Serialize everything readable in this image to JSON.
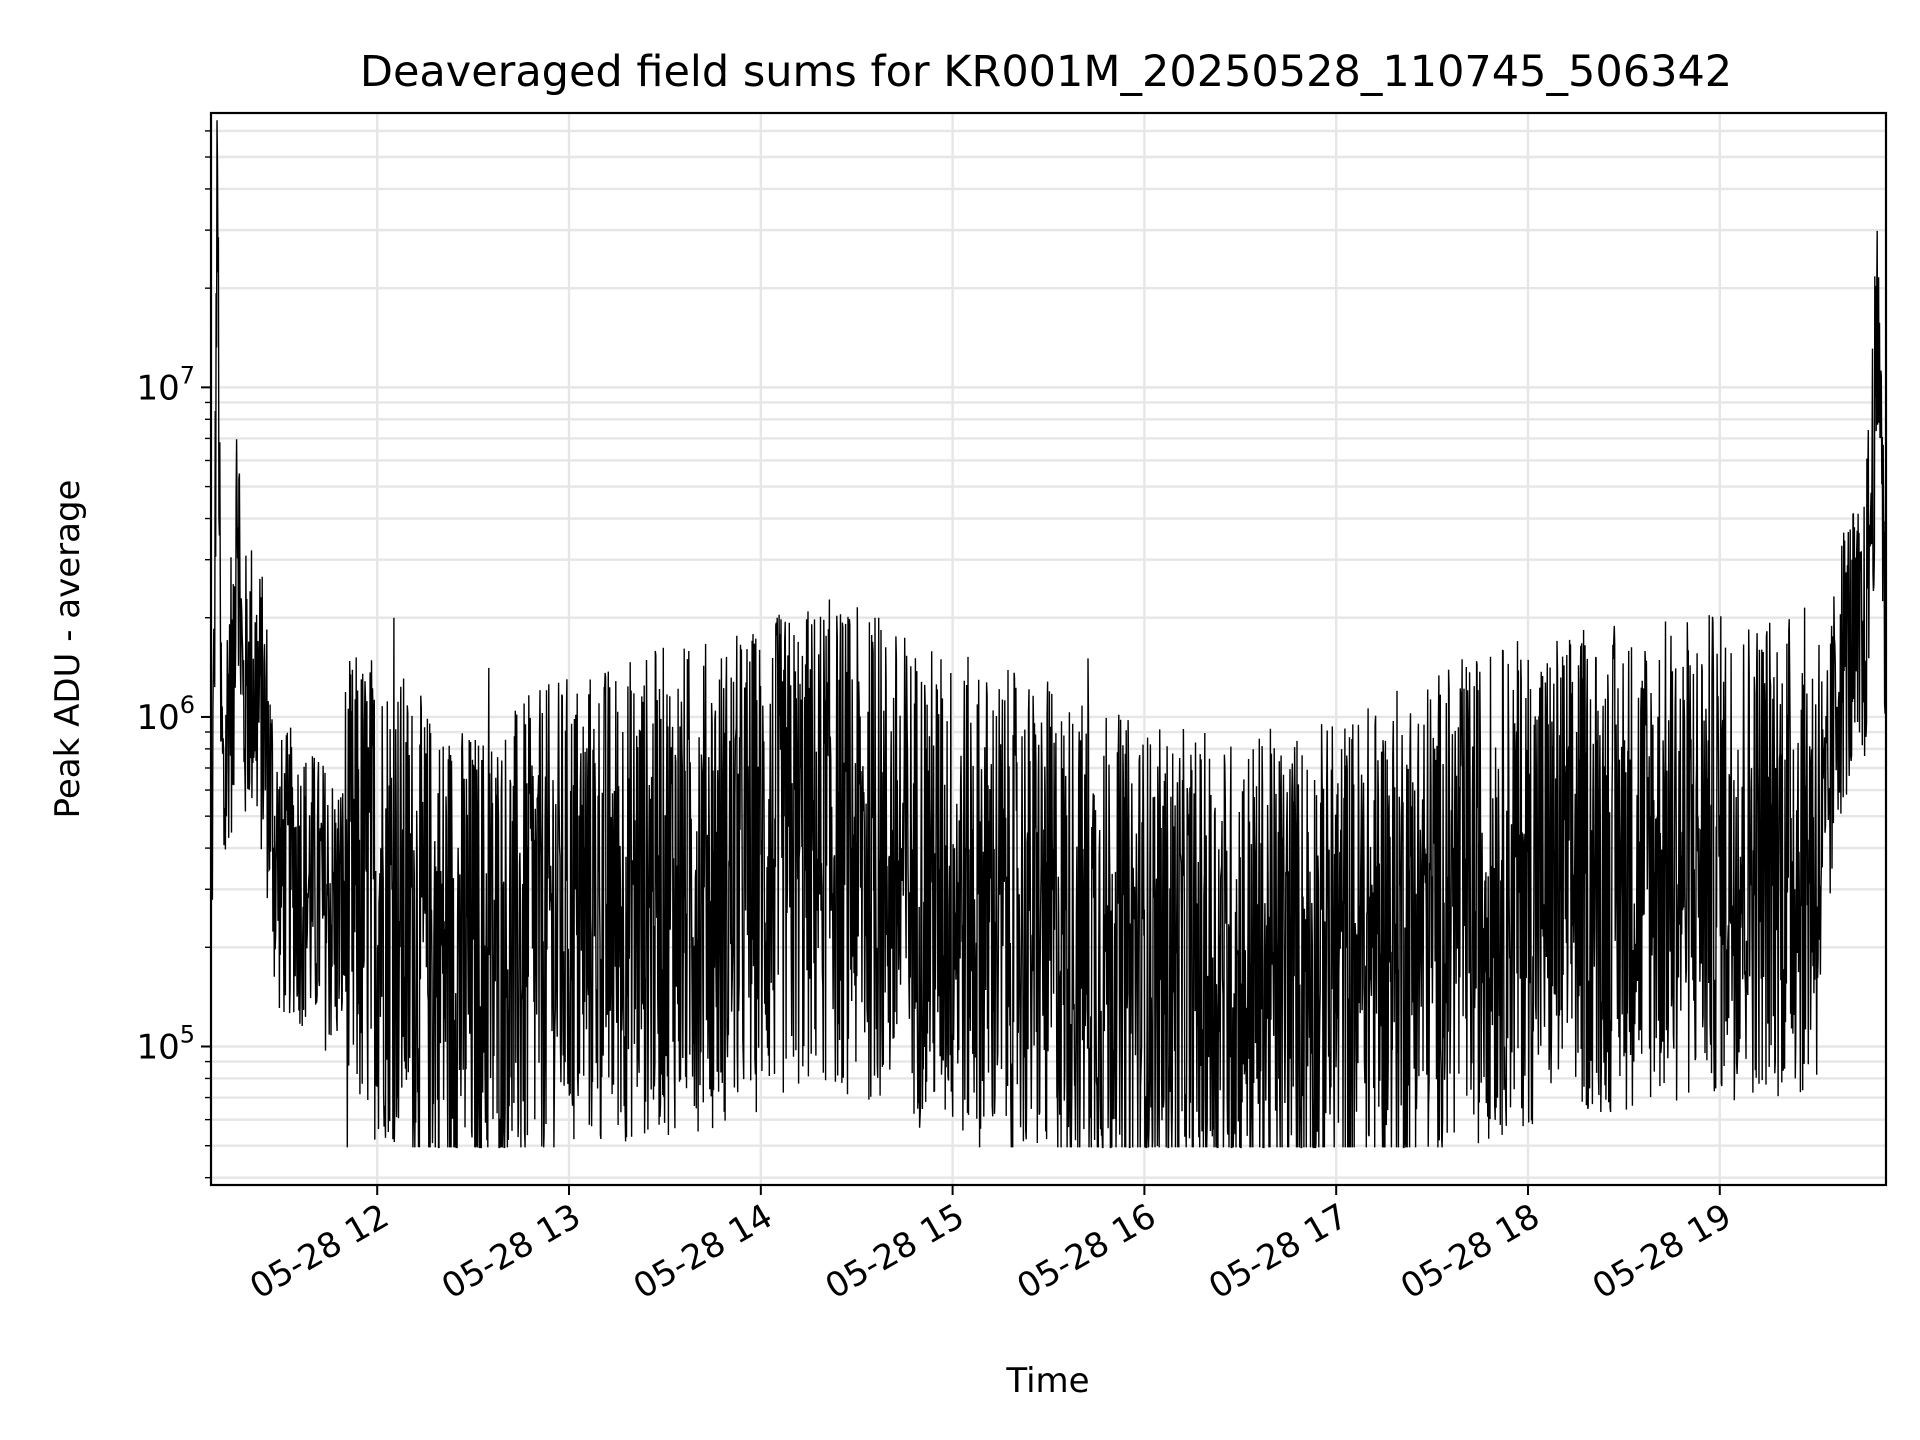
{
  "chart_data": {
    "type": "line",
    "title": "Deaveraged field sums for KR001M_20250528_110745_506342",
    "xlabel": "Time",
    "ylabel": "Peak ADU - average",
    "xscale": "time",
    "yscale": "log",
    "xlim": [
      "2025-05-28T11:08",
      "2025-05-28T19:52"
    ],
    "ylim": [
      38000,
      68000000
    ],
    "grid": true,
    "line_color": "#000000",
    "background": "#ffffff",
    "grid_color": "#e6e6e6",
    "x_ticks": [
      {
        "value": "2025-05-28T12:00",
        "label": "05-28 12"
      },
      {
        "value": "2025-05-28T13:00",
        "label": "05-28 13"
      },
      {
        "value": "2025-05-28T14:00",
        "label": "05-28 14"
      },
      {
        "value": "2025-05-28T15:00",
        "label": "05-28 15"
      },
      {
        "value": "2025-05-28T16:00",
        "label": "05-28 16"
      },
      {
        "value": "2025-05-28T17:00",
        "label": "05-28 17"
      },
      {
        "value": "2025-05-28T18:00",
        "label": "05-28 18"
      },
      {
        "value": "2025-05-28T19:00",
        "label": "05-28 19"
      }
    ],
    "y_ticks": [
      {
        "value": 100000,
        "base": "10",
        "exp": "5"
      },
      {
        "value": 1000000,
        "base": "10",
        "exp": "6"
      },
      {
        "value": 10000000,
        "base": "10",
        "exp": "7"
      }
    ],
    "series": [
      {
        "x": [
          "2025-05-28T11:08",
          "2025-05-28T11:09",
          "2025-05-28T11:10",
          "2025-05-28T11:11",
          "2025-05-28T11:12",
          "2025-05-28T11:14",
          "2025-05-28T11:15",
          "2025-05-28T11:16",
          "2025-05-28T11:18",
          "2025-05-28T11:20",
          "2025-05-28T11:23",
          "2025-05-28T11:25",
          "2025-05-28T11:28",
          "2025-05-28T11:30",
          "2025-05-28T11:34",
          "2025-05-28T11:38",
          "2025-05-28T11:42",
          "2025-05-28T11:48",
          "2025-05-28T11:55",
          "2025-05-28T12:05",
          "2025-05-28T12:15",
          "2025-05-28T12:30",
          "2025-05-28T12:45",
          "2025-05-28T13:00",
          "2025-05-28T13:30",
          "2025-05-28T13:50",
          "2025-05-28T14:00",
          "2025-05-28T14:20",
          "2025-05-28T14:40",
          "2025-05-28T14:55",
          "2025-05-28T15:10",
          "2025-05-28T15:30",
          "2025-05-28T15:45",
          "2025-05-28T16:00",
          "2025-05-28T16:20",
          "2025-05-28T16:40",
          "2025-05-28T17:00",
          "2025-05-28T17:30",
          "2025-05-28T18:00",
          "2025-05-28T18:30",
          "2025-05-28T19:00",
          "2025-05-28T19:15",
          "2025-05-28T19:25",
          "2025-05-28T19:33",
          "2025-05-28T19:37",
          "2025-05-28T19:40",
          "2025-05-28T19:45",
          "2025-05-28T19:50",
          "2025-05-28T19:52"
        ],
        "y": [
          300000,
          1200000,
          55000000,
          1000000,
          500000,
          1500000,
          900000,
          7000000,
          1000000,
          1400000,
          1100000,
          900000,
          380000,
          320000,
          340000,
          300000,
          280000,
          250000,
          300000,
          280000,
          200000,
          170000,
          200000,
          250000,
          300000,
          320000,
          350000,
          420000,
          350000,
          300000,
          260000,
          230000,
          200000,
          170000,
          160000,
          165000,
          180000,
          250000,
          320000,
          350000,
          380000,
          400000,
          380000,
          420000,
          1300000,
          1600000,
          1500000,
          16000000,
          1300000
        ]
      }
    ]
  }
}
